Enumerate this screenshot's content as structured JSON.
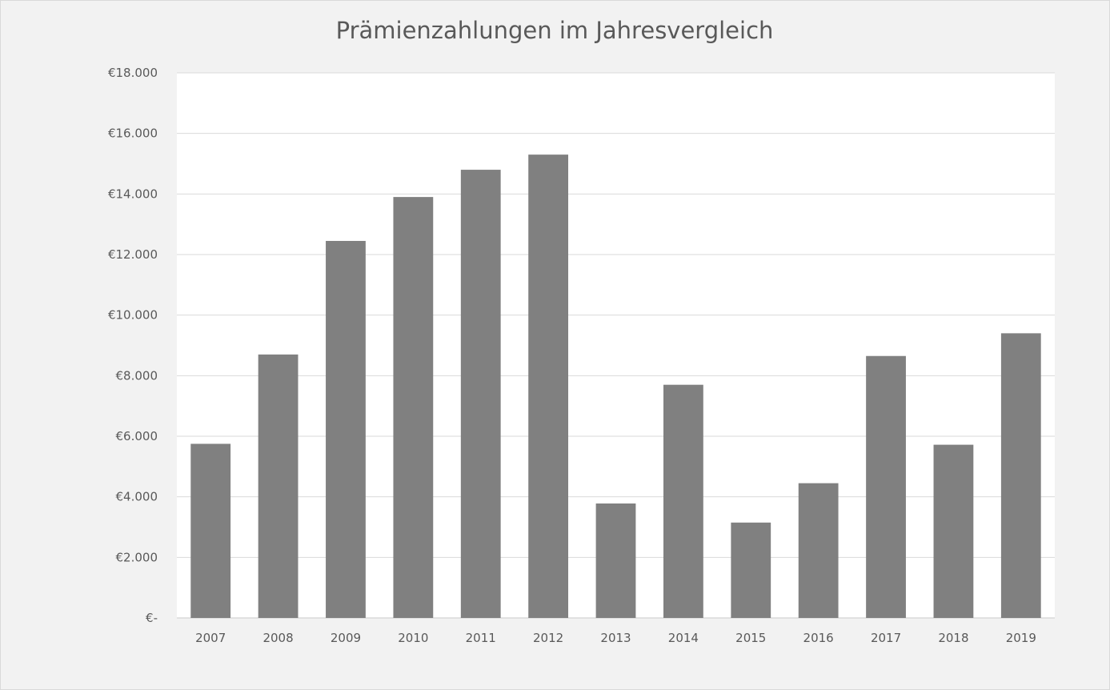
{
  "chart_data": {
    "type": "bar",
    "title": "Prämienzahlungen im Jahresvergleich",
    "xlabel": "",
    "ylabel": "",
    "categories": [
      "2007",
      "2008",
      "2009",
      "2010",
      "2011",
      "2012",
      "2013",
      "2014",
      "2015",
      "2016",
      "2017",
      "2018",
      "2019"
    ],
    "values": [
      5750,
      8700,
      12450,
      13900,
      14800,
      15300,
      3780,
      7700,
      3150,
      4450,
      8650,
      5720,
      9400
    ],
    "ylim": [
      0,
      18000
    ],
    "yticks": [
      0,
      2000,
      4000,
      6000,
      8000,
      10000,
      12000,
      14000,
      16000,
      18000
    ],
    "ytick_labels": [
      "€-",
      "€2.000",
      "€4.000",
      "€6.000",
      "€8.000",
      "€10.000",
      "€12.000",
      "€14.000",
      "€16.000",
      "€18.000"
    ],
    "grid": true,
    "legend": "none",
    "colors": {
      "bar": "#808080",
      "plot_background": "#ffffff",
      "chart_background": "#f2f2f2",
      "grid": "#d9d9d9",
      "text": "#595959"
    }
  }
}
